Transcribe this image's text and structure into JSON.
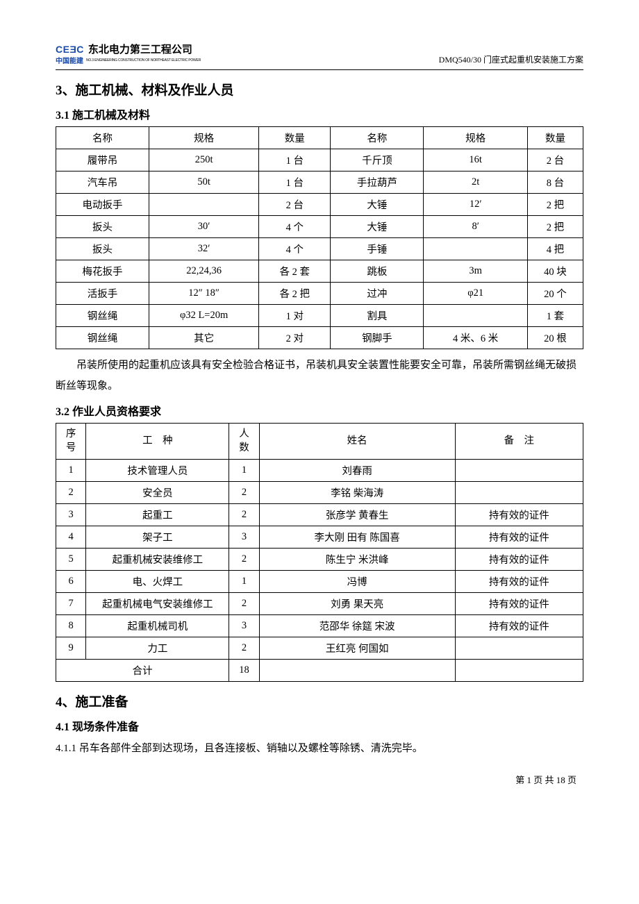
{
  "header": {
    "logo_code": "CEƎC",
    "logo_company": "东北电力第三工程公司",
    "logo_ch": "中国能建",
    "logo_sub": "NO.3 ENGINEERING CONSTRUCTION OF NORTHEAST ELECTRIC POWER",
    "doc_title": "DMQ540/30 门座式起重机安装施工方案"
  },
  "sections": {
    "s3_title": "3、施工机械、材料及作业人员",
    "s3_1_title": "3.1 施工机械及材料",
    "s3_note": "吊装所使用的起重机应该具有安全检验合格证书，吊装机具安全装置性能要安全可靠，吊装所需钢丝绳无破损断丝等现象。",
    "s3_2_title": "3.2 作业人员资格要求",
    "s4_title": "4、施工准备",
    "s4_1_title": "4.1 现场条件准备",
    "s4_1_1": "4.1.1 吊车各部件全部到达现场，且各连接板、销轴以及螺栓等除锈、清洗完毕。"
  },
  "table1": {
    "headers": {
      "name": "名称",
      "spec": "规格",
      "qty": "数量"
    },
    "rows": [
      {
        "n1": "履带吊",
        "s1": "250t",
        "q1": "1 台",
        "n2": "千斤顶",
        "s2": "16t",
        "q2": "2 台"
      },
      {
        "n1": "汽车吊",
        "s1": "50t",
        "q1": "1 台",
        "n2": "手拉葫芦",
        "s2": "2t",
        "q2": "8 台"
      },
      {
        "n1": "电动扳手",
        "s1": "",
        "q1": "2 台",
        "n2": "大锤",
        "s2": "12′",
        "q2": "2 把"
      },
      {
        "n1": "扳头",
        "s1": "30′",
        "q1": "4 个",
        "n2": "大锤",
        "s2": "8′",
        "q2": "2 把"
      },
      {
        "n1": "扳头",
        "s1": "32′",
        "q1": "4 个",
        "n2": "手锤",
        "s2": "",
        "q2": "4 把"
      },
      {
        "n1": "梅花扳手",
        "s1": "22,24,36",
        "q1": "各 2 套",
        "n2": "跳板",
        "s2": "3m",
        "q2": "40 块"
      },
      {
        "n1": "活扳手",
        "s1": "12″ 18″",
        "q1": "各 2 把",
        "n2": "过冲",
        "s2": "φ21",
        "q2": "20 个"
      },
      {
        "n1": "钢丝绳",
        "s1": "φ32 L=20m",
        "q1": "1 对",
        "n2": "割具",
        "s2": "",
        "q2": "1 套"
      },
      {
        "n1": "钢丝绳",
        "s1": "其它",
        "q1": "2 对",
        "n2": "钢脚手",
        "s2": "4 米、6 米",
        "q2": "20 根"
      }
    ]
  },
  "table2": {
    "headers": {
      "seq_top": "序",
      "seq_bot": "号",
      "job": "工　种",
      "count_top": "人",
      "count_bot": "数",
      "name": "姓名",
      "remark": "备　注"
    },
    "rows": [
      {
        "seq": "1",
        "job": "技术管理人员",
        "count": "1",
        "name": "刘春雨",
        "remark": ""
      },
      {
        "seq": "2",
        "job": "安全员",
        "count": "2",
        "name": "李铭 柴海涛",
        "remark": ""
      },
      {
        "seq": "3",
        "job": "起重工",
        "count": "2",
        "name": "张彦学 黄春生",
        "remark": "持有效的证件"
      },
      {
        "seq": "4",
        "job": "架子工",
        "count": "3",
        "name": "李大刚 田有 陈国喜",
        "remark": "持有效的证件"
      },
      {
        "seq": "5",
        "job": "起重机械安装维修工",
        "count": "2",
        "name": "陈生宁 米洪峰",
        "remark": "持有效的证件"
      },
      {
        "seq": "6",
        "job": "电、火焊工",
        "count": "1",
        "name": "冯博",
        "remark": "持有效的证件"
      },
      {
        "seq": "7",
        "job": "起重机械电气安装维修工",
        "count": "2",
        "name": "刘勇 果天亮",
        "remark": "持有效的证件"
      },
      {
        "seq": "8",
        "job": "起重机械司机",
        "count": "3",
        "name": "范邵华 徐筵 宋波",
        "remark": "持有效的证件"
      },
      {
        "seq": "9",
        "job": "力工",
        "count": "2",
        "name": "王红亮 何国如",
        "remark": ""
      }
    ],
    "total": {
      "label": "合计",
      "count": "18"
    }
  },
  "footer": {
    "page": "第 1 页 共 18 页"
  }
}
